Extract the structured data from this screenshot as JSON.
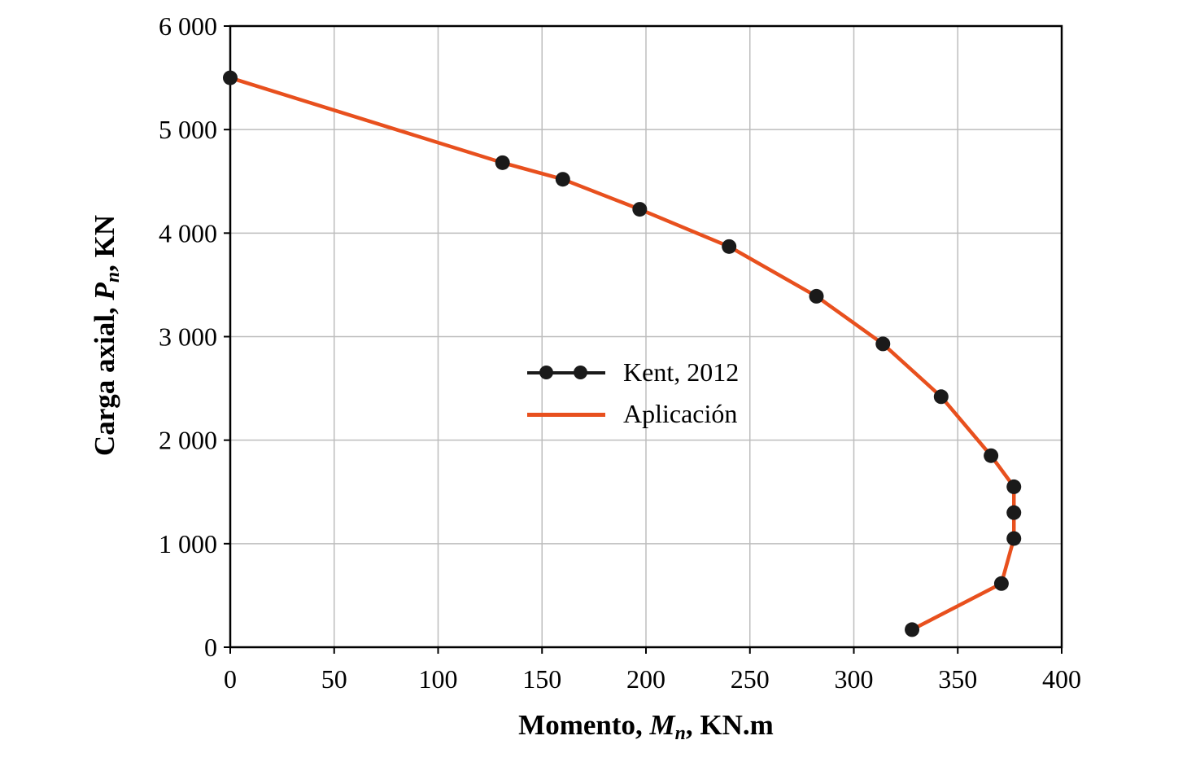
{
  "page": {
    "background": "#ffffff"
  },
  "axes": {
    "x_title": {
      "prefix": "Momento, ",
      "symbol": "M",
      "subscript": "n",
      "suffix": ", KN.m"
    },
    "y_title": {
      "prefix": "Carga axial, ",
      "symbol": "P",
      "subscript": "n",
      "suffix": ", KN"
    }
  },
  "chart_data": {
    "type": "line",
    "title": "",
    "xlabel": "Momento, Mn, KN.m",
    "ylabel": "Carga axial, Pn, KN",
    "xlim": [
      0,
      400
    ],
    "ylim": [
      0,
      6000
    ],
    "x_ticks": [
      0,
      50,
      100,
      150,
      200,
      250,
      300,
      350,
      400
    ],
    "x_tick_labels": [
      "0",
      "50",
      "100",
      "150",
      "200",
      "250",
      "300",
      "350",
      "400"
    ],
    "y_ticks": [
      0,
      1000,
      2000,
      3000,
      4000,
      5000,
      6000
    ],
    "y_tick_labels": [
      "0",
      "1 000",
      "2 000",
      "3 000",
      "4 000",
      "5 000",
      "6 000"
    ],
    "grid": true,
    "legend_position": "inside center-left",
    "colors": {
      "grid": "#bdbdbd",
      "axis": "#000000",
      "kent": "#1a1a1a",
      "aplicacion": "#E8501E",
      "background": "#ffffff"
    },
    "series": [
      {
        "name": "Kent, 2012",
        "color": "#1a1a1a",
        "marker": "circle",
        "points": [
          [
            0,
            5500
          ],
          [
            131,
            4680
          ],
          [
            160,
            4520
          ],
          [
            197,
            4230
          ],
          [
            240,
            3870
          ],
          [
            282,
            3390
          ],
          [
            314,
            2930
          ],
          [
            342,
            2420
          ],
          [
            366,
            1850
          ],
          [
            377,
            1550
          ],
          [
            377,
            1300
          ],
          [
            377,
            1050
          ],
          [
            371,
            615
          ],
          [
            328,
            170
          ]
        ]
      },
      {
        "name": "Aplicación",
        "color": "#E8501E",
        "marker": "none",
        "points": [
          [
            0,
            5500
          ],
          [
            131,
            4680
          ],
          [
            160,
            4520
          ],
          [
            197,
            4230
          ],
          [
            240,
            3870
          ],
          [
            282,
            3390
          ],
          [
            314,
            2930
          ],
          [
            342,
            2420
          ],
          [
            366,
            1850
          ],
          [
            377,
            1550
          ],
          [
            377,
            1300
          ],
          [
            377,
            1050
          ],
          [
            371,
            615
          ],
          [
            328,
            170
          ]
        ]
      }
    ]
  }
}
